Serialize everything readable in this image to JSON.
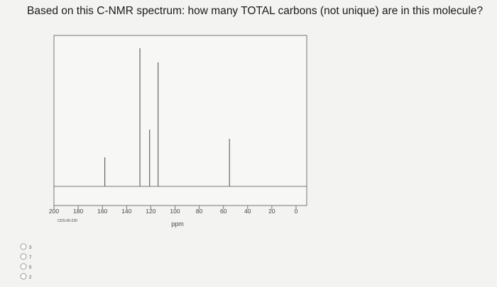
{
  "question": "Based on this C-NMR spectrum: how many TOTAL carbons (not unique) are in this molecule?",
  "spectrum": {
    "type": "stem",
    "x_label": "ppm",
    "code": "CDS-00-220",
    "xlim": [
      200,
      0
    ],
    "xticks": [
      200,
      180,
      160,
      140,
      120,
      100,
      80,
      60,
      40,
      20,
      0
    ],
    "ylim": [
      0,
      213
    ],
    "peaks": {
      "x": [
        158,
        129,
        121,
        114,
        55
      ],
      "values": [
        41,
        195,
        80,
        175,
        67
      ]
    },
    "color": "#666666"
  },
  "options": [
    "3",
    "7",
    "5",
    "2"
  ]
}
